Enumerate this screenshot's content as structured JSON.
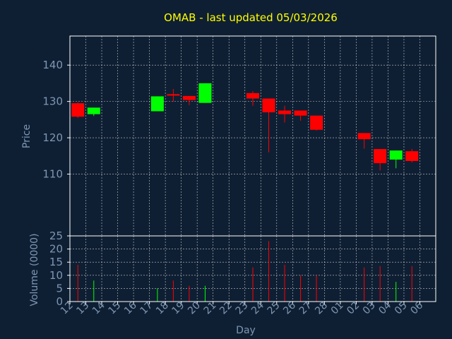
{
  "colors": {
    "background": "#0f1f33",
    "grid": "#ffffff",
    "up": "#00ff00",
    "down": "#ff0000",
    "title": "#ffff00",
    "axis_text": "#7d97b3"
  },
  "chart_data": {
    "type": "candlestick",
    "title": "OMAB - last updated 05/03/2026",
    "xlabel": "Day",
    "x_ticks": [
      "12",
      "13",
      "14",
      "15",
      "16",
      "17",
      "18",
      "19",
      "20",
      "21",
      "22",
      "23",
      "24",
      "25",
      "26",
      "27",
      "28",
      "01",
      "02",
      "03",
      "04",
      "05",
      "06"
    ],
    "price_panel": {
      "ylabel": "Price",
      "ylim": [
        93,
        148
      ],
      "y_ticks": [
        110,
        120,
        130,
        140
      ],
      "candles": [
        {
          "x": "12",
          "open": 129.5,
          "high": 129.8,
          "low": 125.5,
          "close": 125.8
        },
        {
          "x": "13",
          "open": 126.5,
          "high": 128.3,
          "low": 126.0,
          "close": 128.3
        },
        {
          "x": "17",
          "open": 127.3,
          "high": 131.4,
          "low": 127.3,
          "close": 131.4
        },
        {
          "x": "18",
          "open": 132.0,
          "high": 133.4,
          "low": 129.9,
          "close": 131.6
        },
        {
          "x": "19",
          "open": 131.5,
          "high": 131.5,
          "low": 129.0,
          "close": 130.4
        },
        {
          "x": "20",
          "open": 129.6,
          "high": 135.0,
          "low": 129.6,
          "close": 135.0
        },
        {
          "x": "23",
          "open": 132.3,
          "high": 132.8,
          "low": 128.8,
          "close": 130.8
        },
        {
          "x": "24",
          "open": 130.8,
          "high": 130.8,
          "low": 116.0,
          "close": 127.0
        },
        {
          "x": "25",
          "open": 127.5,
          "high": 128.8,
          "low": 124.2,
          "close": 126.5
        },
        {
          "x": "26",
          "open": 127.5,
          "high": 127.5,
          "low": 124.7,
          "close": 126.1
        },
        {
          "x": "27",
          "open": 126.1,
          "high": 126.1,
          "low": 122.0,
          "close": 122.2
        },
        {
          "x": "02",
          "open": 121.3,
          "high": 121.3,
          "low": 117.0,
          "close": 119.6
        },
        {
          "x": "03",
          "open": 116.9,
          "high": 116.9,
          "low": 111.0,
          "close": 113.0
        },
        {
          "x": "04",
          "open": 114.0,
          "high": 116.5,
          "low": 111.6,
          "close": 116.5
        },
        {
          "x": "05",
          "open": 116.3,
          "high": 116.9,
          "low": 113.2,
          "close": 113.6
        }
      ]
    },
    "volume_panel": {
      "ylabel": "Volume (0000)",
      "ylim": [
        0,
        25
      ],
      "y_ticks": [
        0,
        5,
        10,
        15,
        20,
        25
      ],
      "bars": [
        {
          "x": "12",
          "value": 14,
          "dir": "down"
        },
        {
          "x": "13",
          "value": 8,
          "dir": "up"
        },
        {
          "x": "17",
          "value": 5,
          "dir": "up"
        },
        {
          "x": "18",
          "value": 8,
          "dir": "down"
        },
        {
          "x": "19",
          "value": 6,
          "dir": "down"
        },
        {
          "x": "20",
          "value": 6,
          "dir": "up"
        },
        {
          "x": "23",
          "value": 13,
          "dir": "down"
        },
        {
          "x": "24",
          "value": 23,
          "dir": "down"
        },
        {
          "x": "25",
          "value": 14,
          "dir": "down"
        },
        {
          "x": "26",
          "value": 10,
          "dir": "down"
        },
        {
          "x": "27",
          "value": 10,
          "dir": "down"
        },
        {
          "x": "02",
          "value": 13,
          "dir": "down"
        },
        {
          "x": "03",
          "value": 13.5,
          "dir": "down"
        },
        {
          "x": "04",
          "value": 7.5,
          "dir": "up"
        },
        {
          "x": "05",
          "value": 13.5,
          "dir": "down"
        }
      ]
    }
  }
}
